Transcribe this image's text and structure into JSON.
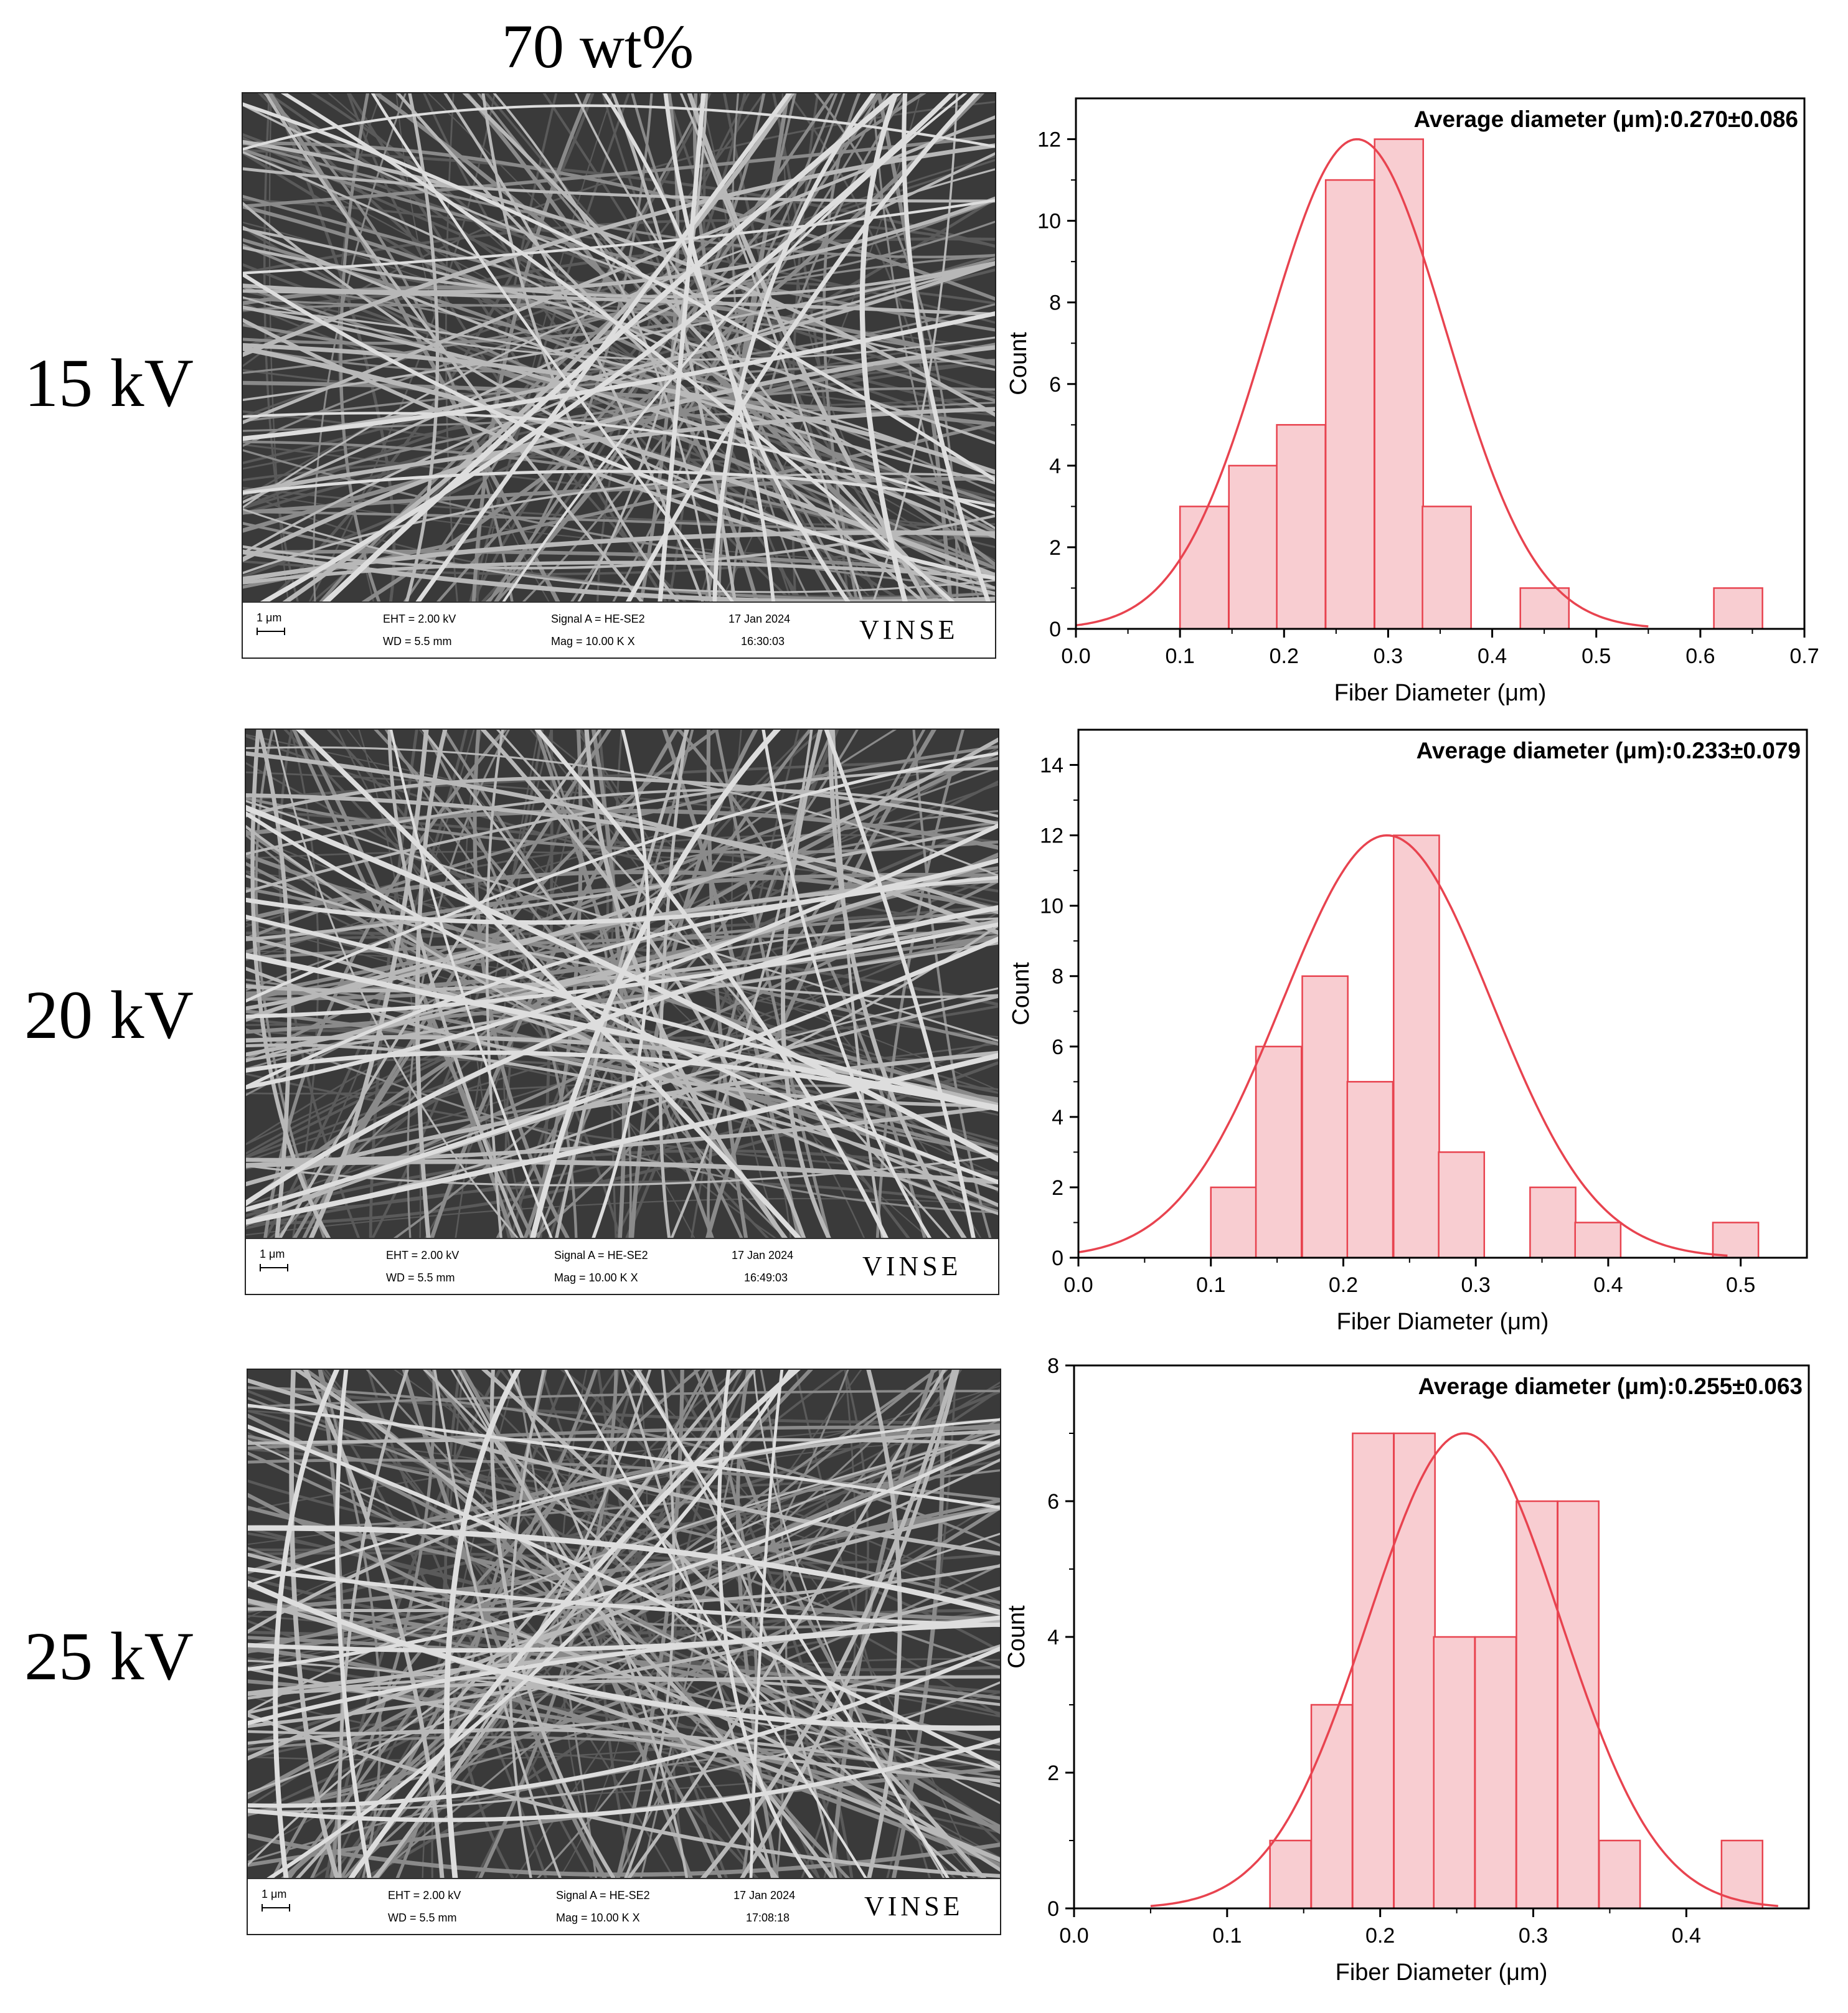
{
  "column_title": "70 wt%",
  "rows": [
    {
      "label": "15 kV"
    },
    {
      "label": "20 kV"
    },
    {
      "label": "25 kV"
    }
  ],
  "sem_panels": [
    {
      "scale": "1 μm",
      "eht": "EHT = 2.00 kV",
      "wd": "WD = 5.5 mm",
      "signal": "Signal A = HE-SE2",
      "mag": "Mag = 10.00 K X",
      "date": "17 Jan 2024",
      "time": "16:30:03",
      "logo": "VINSE"
    },
    {
      "scale": "1 μm",
      "eht": "EHT = 2.00 kV",
      "wd": "WD = 5.5 mm",
      "signal": "Signal A = HE-SE2",
      "mag": "Mag = 10.00 K X",
      "date": "17 Jan 2024",
      "time": "16:49:03",
      "logo": "VINSE"
    },
    {
      "scale": "1 μm",
      "eht": "EHT = 2.00 kV",
      "wd": "WD = 5.5 mm",
      "signal": "Signal A = HE-SE2",
      "mag": "Mag = 10.00 K X",
      "date": "17 Jan 2024",
      "time": "17:08:18",
      "logo": "VINSE"
    }
  ],
  "colors": {
    "bar_fill": "#f8cdd1",
    "bar_stroke": "#e8434f",
    "curve": "#e8434f"
  },
  "chart_data": [
    {
      "type": "bar",
      "title": "Average diameter (μm):0.270±0.086",
      "xlabel": "Fiber Diameter (μm)",
      "ylabel": "Count",
      "xlim": [
        0.0,
        0.7
      ],
      "ylim": [
        0,
        13
      ],
      "xticks": [
        0.0,
        0.1,
        0.2,
        0.3,
        0.4,
        0.5,
        0.6,
        0.7
      ],
      "xtick_labels": [
        "0.0",
        "0.1",
        "0.2",
        "0.3",
        "0.4",
        "0.5",
        "0.6",
        "0.7"
      ],
      "yticks": [
        0,
        2,
        4,
        6,
        8,
        10,
        12
      ],
      "ytick_labels": [
        "0",
        "2",
        "4",
        "6",
        "8",
        "10",
        "12"
      ],
      "bin_width": 0.0467,
      "bins": [
        {
          "start": 0.1,
          "count": 3
        },
        {
          "start": 0.147,
          "count": 4
        },
        {
          "start": 0.193,
          "count": 5
        },
        {
          "start": 0.24,
          "count": 11
        },
        {
          "start": 0.287,
          "count": 12
        },
        {
          "start": 0.333,
          "count": 3
        },
        {
          "start": 0.427,
          "count": 1
        },
        {
          "start": 0.613,
          "count": 1
        }
      ],
      "fit": {
        "mean": 0.27,
        "sd": 0.086,
        "peak": 12,
        "x_range": [
          0.0,
          0.55
        ]
      }
    },
    {
      "type": "bar",
      "title": "Average diameter (μm):0.233±0.079",
      "xlabel": "Fiber Diameter (μm)",
      "ylabel": "Count",
      "xlim": [
        0.0,
        0.55
      ],
      "ylim": [
        0,
        15
      ],
      "xticks": [
        0.0,
        0.1,
        0.2,
        0.3,
        0.4,
        0.5
      ],
      "xtick_labels": [
        "0.0",
        "0.1",
        "0.2",
        "0.3",
        "0.4",
        "0.5"
      ],
      "yticks": [
        0,
        2,
        4,
        6,
        8,
        10,
        12,
        14
      ],
      "ytick_labels": [
        "0",
        "2",
        "4",
        "6",
        "8",
        "10",
        "12",
        "14"
      ],
      "bin_width": 0.0344,
      "bins": [
        {
          "start": 0.1,
          "count": 2
        },
        {
          "start": 0.134,
          "count": 6
        },
        {
          "start": 0.169,
          "count": 8
        },
        {
          "start": 0.203,
          "count": 5
        },
        {
          "start": 0.238,
          "count": 12
        },
        {
          "start": 0.272,
          "count": 3
        },
        {
          "start": 0.341,
          "count": 2
        },
        {
          "start": 0.375,
          "count": 1
        },
        {
          "start": 0.479,
          "count": 1
        }
      ],
      "fit": {
        "mean": 0.233,
        "sd": 0.079,
        "peak": 12,
        "x_range": [
          0.0,
          0.49
        ]
      }
    },
    {
      "type": "bar",
      "title": "Average diameter (μm):0.255±0.063",
      "xlabel": "Fiber Diameter (μm)",
      "ylabel": "Count",
      "xlim": [
        0.0,
        0.48
      ],
      "ylim": [
        0,
        8
      ],
      "xticks": [
        0.0,
        0.1,
        0.2,
        0.3,
        0.4
      ],
      "xtick_labels": [
        "0.0",
        "0.1",
        "0.2",
        "0.3",
        "0.4"
      ],
      "yticks": [
        0,
        2,
        4,
        6,
        8
      ],
      "ytick_labels": [
        "0",
        "2",
        "4",
        "6",
        "8"
      ],
      "bin_width": 0.0268,
      "bins": [
        {
          "start": 0.128,
          "count": 1
        },
        {
          "start": 0.155,
          "count": 3
        },
        {
          "start": 0.182,
          "count": 7
        },
        {
          "start": 0.209,
          "count": 7
        },
        {
          "start": 0.235,
          "count": 4
        },
        {
          "start": 0.262,
          "count": 4
        },
        {
          "start": 0.289,
          "count": 6
        },
        {
          "start": 0.316,
          "count": 6
        },
        {
          "start": 0.343,
          "count": 1
        },
        {
          "start": 0.423,
          "count": 1
        }
      ],
      "fit": {
        "mean": 0.255,
        "sd": 0.063,
        "peak": 7,
        "x_range": [
          0.05,
          0.46
        ]
      }
    }
  ]
}
